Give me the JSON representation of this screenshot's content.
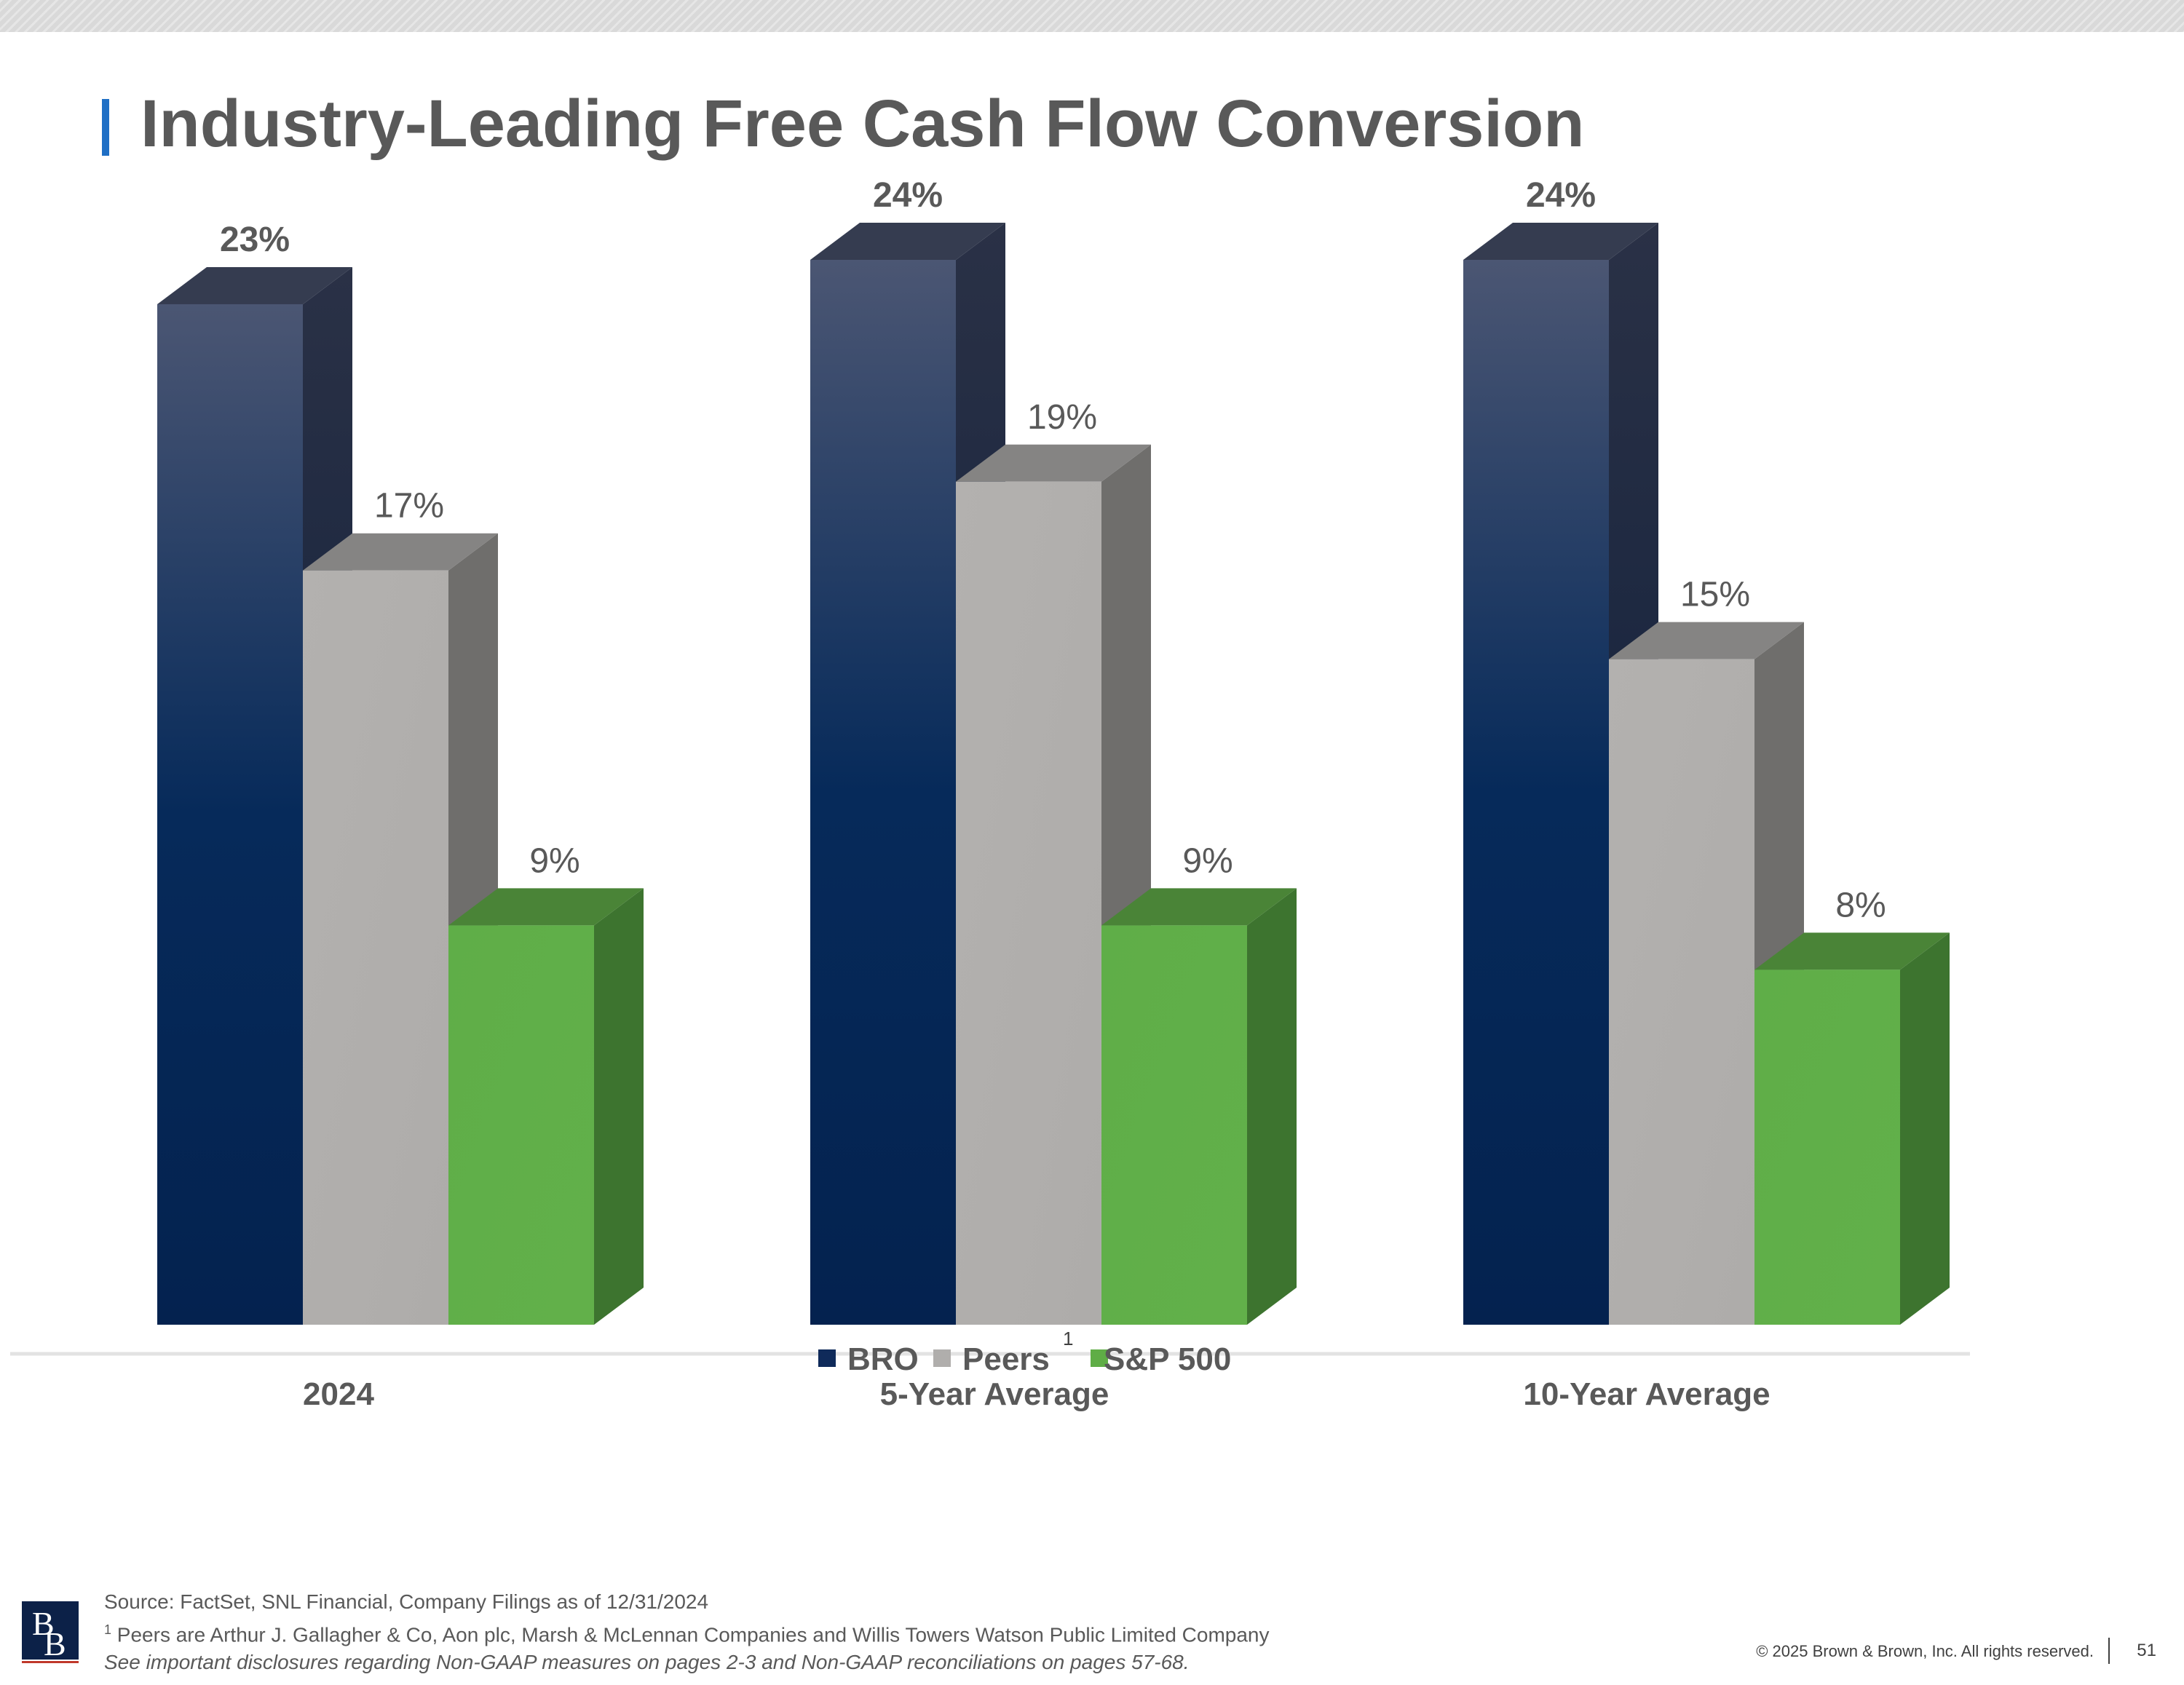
{
  "slide": {
    "title": "Industry-Leading Free Cash Flow Conversion"
  },
  "chart_data": {
    "type": "bar",
    "categories": [
      "2024",
      "5-Year Average",
      "10-Year Average"
    ],
    "series": [
      {
        "name": "BRO",
        "values": [
          23,
          24,
          24
        ],
        "labels": [
          "23%",
          "24%",
          "24%"
        ],
        "color": "#0f2a5a"
      },
      {
        "name": "Peers",
        "values": [
          17,
          19,
          15
        ],
        "labels": [
          "17%",
          "19%",
          "15%"
        ],
        "color": "#b0aeac"
      },
      {
        "name": "S&P 500",
        "values": [
          9,
          9,
          8
        ],
        "labels": [
          "9%",
          "9%",
          "8%"
        ],
        "color": "#5fad46"
      }
    ],
    "legend_position": "bottom",
    "legend_footnote_marker": "1",
    "title": "",
    "xlabel": "",
    "ylabel": "",
    "ylim": [
      0,
      24
    ]
  },
  "footer": {
    "source": "Source: FactSet, SNL Financial, Company Filings as of 12/31/2024",
    "footnote_marker": "1",
    "footnote": " Peers are Arthur J. Gallagher & Co, Aon plc, Marsh & McLennan Companies and Willis Towers Watson Public Limited Company",
    "disclosure": "See important disclosures regarding Non-GAAP measures on pages 2-3 and Non-GAAP reconciliations on pages 57-68.",
    "copyright": "© 2025 Brown & Brown, Inc. All rights reserved.",
    "page_number": "51"
  },
  "logo": {
    "letters": "BB"
  }
}
